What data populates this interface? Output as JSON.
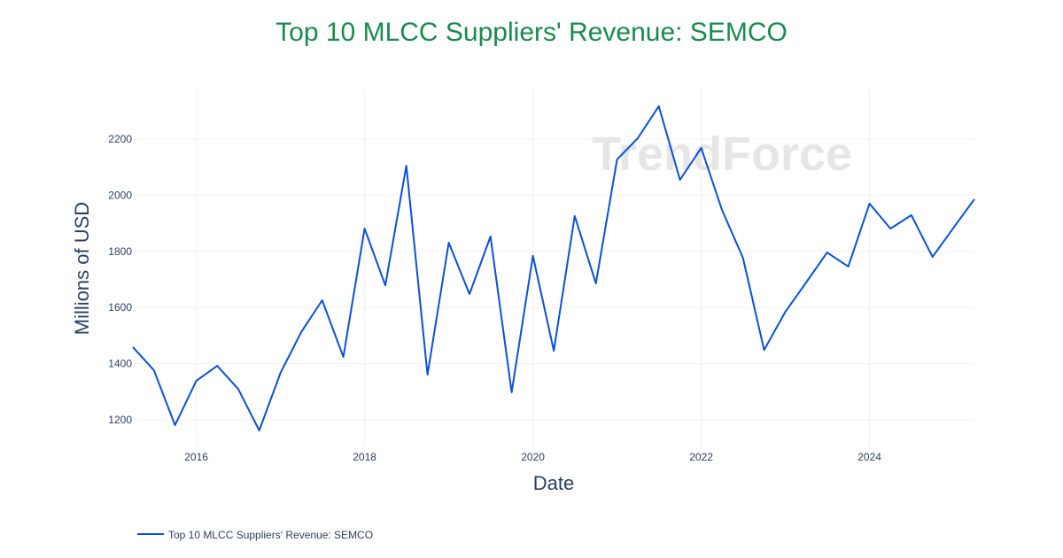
{
  "chart_data": {
    "type": "line",
    "title": "Top 10 MLCC Suppliers' Revenue: SEMCO",
    "xlabel": "Date",
    "ylabel": "Millions of USD",
    "watermark": "TrendForce",
    "legend_position": "bottom-left",
    "grid": true,
    "color": "#0a50d8",
    "title_color": "#1a8a50",
    "xlim": [
      "2015-04-01",
      "2025-04-01"
    ],
    "ylim": [
      1110,
      2400
    ],
    "x_ticks": [
      "2016",
      "2018",
      "2020",
      "2022",
      "2024"
    ],
    "y_ticks": [
      1200,
      1400,
      1600,
      1800,
      2000,
      2200
    ],
    "series": [
      {
        "name": "Top 10 MLCC Suppliers' Revenue: SEMCO",
        "x": [
          "2015-04-01",
          "2015-07-01",
          "2015-10-01",
          "2016-01-01",
          "2016-04-01",
          "2016-07-01",
          "2016-10-01",
          "2017-01-01",
          "2017-04-01",
          "2017-07-01",
          "2017-10-01",
          "2018-01-01",
          "2018-04-01",
          "2018-07-01",
          "2018-10-01",
          "2019-01-01",
          "2019-04-01",
          "2019-07-01",
          "2019-10-01",
          "2020-01-01",
          "2020-04-01",
          "2020-07-01",
          "2020-10-01",
          "2021-01-01",
          "2021-04-01",
          "2021-07-01",
          "2021-10-01",
          "2022-01-01",
          "2022-04-01",
          "2022-07-01",
          "2022-10-01",
          "2023-01-01",
          "2023-04-01",
          "2023-07-01",
          "2023-10-01",
          "2024-01-01",
          "2024-04-01",
          "2024-07-01",
          "2024-10-01",
          "2025-01-01",
          "2025-04-01"
        ],
        "values": [
          1459,
          1377,
          1181,
          1339,
          1392,
          1310,
          1162,
          1367,
          1512,
          1626,
          1424,
          1881,
          1679,
          2105,
          1361,
          1831,
          1648,
          1853,
          1298,
          1784,
          1446,
          1926,
          1686,
          2127,
          2203,
          2317,
          2055,
          2168,
          1948,
          1777,
          1449,
          1585,
          1689,
          1796,
          1746,
          1970,
          1881,
          1929,
          1780,
          1885,
          1986
        ]
      }
    ]
  }
}
